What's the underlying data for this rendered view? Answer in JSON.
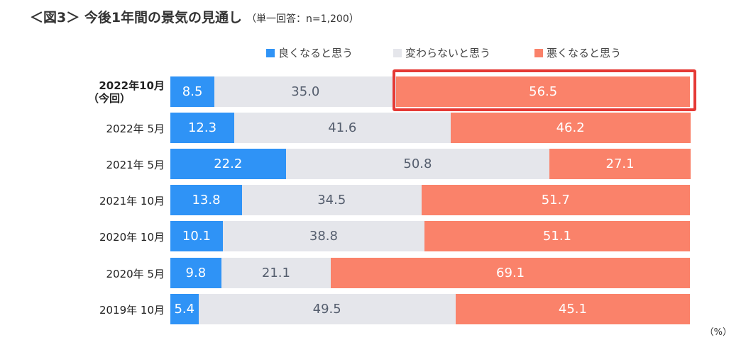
{
  "title": "＜図3＞ 今後1年間の景気の見通し",
  "subtitle": "（単一回答：n=1,200）",
  "unit": "（%）",
  "colors": {
    "good": "#2F93F6",
    "same": "#E5E6EB",
    "bad": "#FA826A",
    "highlight": "#E53935"
  },
  "chart_data": {
    "type": "bar",
    "orientation": "horizontal-stacked-100",
    "categories": [
      "2022年10月（今回）",
      "2022年 5月",
      "2021年 5月",
      "2021年 10月",
      "2020年 10月",
      "2020年 5月",
      "2019年 10月"
    ],
    "category_labels": [
      {
        "line1": "2022年10月",
        "line2": "（今回）"
      },
      {
        "line1": "2022年 5月",
        "line2": ""
      },
      {
        "line1": "2021年 5月",
        "line2": ""
      },
      {
        "line1": "2021年 10月",
        "line2": ""
      },
      {
        "line1": "2020年 10月",
        "line2": ""
      },
      {
        "line1": "2020年 5月",
        "line2": ""
      },
      {
        "line1": "2019年 10月",
        "line2": ""
      }
    ],
    "series": [
      {
        "name": "良くなると思う",
        "values": [
          8.5,
          12.3,
          22.2,
          13.8,
          10.1,
          9.8,
          5.4
        ]
      },
      {
        "name": "変わらないと思う",
        "values": [
          35.0,
          41.6,
          50.8,
          34.5,
          38.8,
          21.1,
          49.5
        ]
      },
      {
        "name": "悪くなると思う",
        "values": [
          56.5,
          46.2,
          27.1,
          51.7,
          51.1,
          69.1,
          45.1
        ]
      }
    ],
    "value_labels": [
      [
        "8.5",
        "35.0",
        "56.5"
      ],
      [
        "12.3",
        "41.6",
        "46.2"
      ],
      [
        "22.2",
        "50.8",
        "27.1"
      ],
      [
        "13.8",
        "34.5",
        "51.7"
      ],
      [
        "10.1",
        "38.8",
        "51.1"
      ],
      [
        "9.8",
        "21.1",
        "69.1"
      ],
      [
        "5.4",
        "49.5",
        "45.1"
      ]
    ],
    "highlighted": {
      "category_index": 0,
      "series_index": 2
    },
    "xlim": [
      0,
      100
    ]
  }
}
